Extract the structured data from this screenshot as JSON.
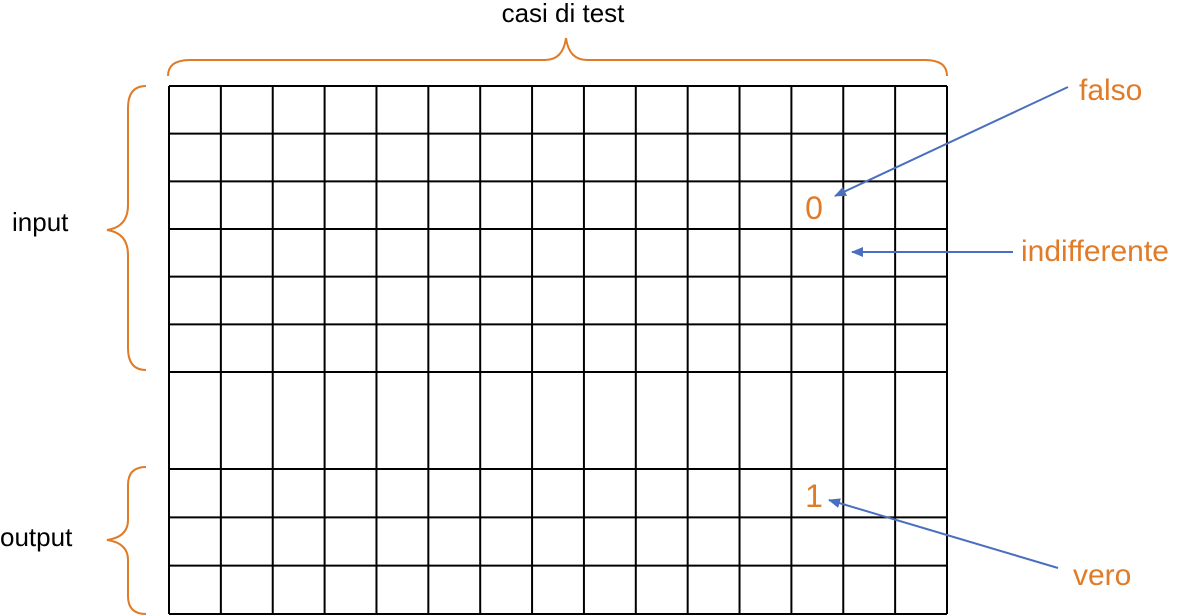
{
  "title": "casi di test",
  "group_labels": {
    "input": "input",
    "output": "output"
  },
  "grid": {
    "columns": 15,
    "input_rows": 6,
    "output_rows": 3
  },
  "cell_values": [
    {
      "name": "cell-value-zero",
      "text": "0",
      "row_group": "input",
      "row": 2,
      "col": 12
    },
    {
      "name": "cell-value-one",
      "text": "1",
      "row_group": "output",
      "row": 0,
      "col": 12
    }
  ],
  "legend": {
    "falso": "falso",
    "indifferente": "indifferente",
    "vero": "vero"
  },
  "colors": {
    "grid": "#000000",
    "brace": "#E07B28",
    "legend_text": "#E07B28",
    "arrow": "#4A6FBE"
  }
}
